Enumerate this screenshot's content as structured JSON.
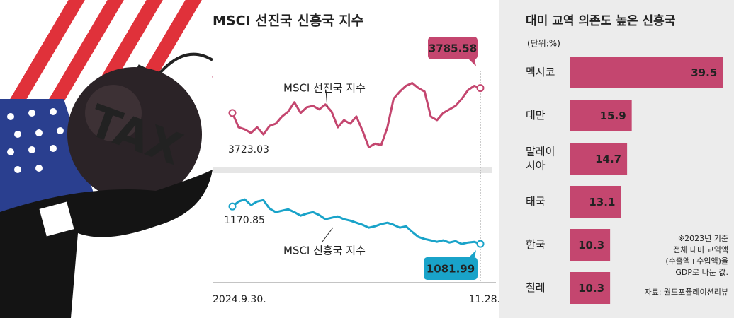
{
  "illustration_text": "TAX",
  "chart_data": [
    {
      "type": "line",
      "title": "MSCI 선진국 신흥국 지수",
      "categories": [
        "2024.9.30.",
        null,
        null,
        null,
        null,
        null,
        null,
        null,
        null,
        null,
        null,
        null,
        null,
        null,
        null,
        null,
        null,
        null,
        null,
        null,
        null,
        null,
        null,
        null,
        null,
        null,
        null,
        null,
        null,
        null,
        null,
        null,
        null,
        null,
        null,
        null,
        null,
        null,
        null,
        null,
        "11.28."
      ],
      "series": [
        {
          "name": "MSCI 선진국 지수",
          "color": "#c4466f",
          "ylim": [
            3590,
            3900
          ],
          "values": [
            3723.03,
            3687.2,
            3681.9,
            3672.9,
            3687.2,
            3669.3,
            3690.8,
            3696.2,
            3714.1,
            3726.6,
            3749.9,
            3723.0,
            3737.4,
            3740.9,
            3732.0,
            3744.5,
            3726.6,
            3687.2,
            3705.1,
            3696.2,
            3714.1,
            3678.3,
            3637.1,
            3646.1,
            3642.5,
            3687.2,
            3758.8,
            3776.7,
            3791.0,
            3798.2,
            3785.7,
            3776.7,
            3714.1,
            3705.1,
            3723.0,
            3732.0,
            3740.9,
            3758.8,
            3780.3,
            3791.0,
            3785.58
          ]
        },
        {
          "name": "MSCI 신흥국 지수",
          "color": "#19a3c9",
          "ylim": [
            990,
            1250
          ],
          "values": [
            1170.85,
            1182.6,
            1187.6,
            1174.2,
            1182.6,
            1186.0,
            1165.8,
            1157.4,
            1160.8,
            1164.1,
            1157.4,
            1149.0,
            1154.1,
            1157.4,
            1150.7,
            1140.7,
            1144.0,
            1147.4,
            1140.7,
            1137.3,
            1132.3,
            1127.3,
            1120.5,
            1123.9,
            1129.0,
            1132.3,
            1127.3,
            1120.5,
            1123.9,
            1110.5,
            1098.7,
            1093.7,
            1090.4,
            1087.0,
            1090.4,
            1085.3,
            1088.6,
            1082.0,
            1085.3,
            1087.0,
            1081.99
          ]
        }
      ]
    },
    {
      "type": "bar",
      "orientation": "horizontal",
      "title": "대미 교역 의존도 높은 신흥국",
      "subtitle": "(단위:%)",
      "categories": [
        "멕시코",
        "대만",
        "말레이\n시아",
        "태국",
        "한국",
        "칠레"
      ],
      "values": [
        39.5,
        15.9,
        14.7,
        13.1,
        10.3,
        10.3
      ],
      "color": "#c4466f",
      "xlim": [
        0,
        40
      ],
      "note": "※2023년 기준\n전체 대미 교역액\n(수출액+수입액)을\nGDP로 나눈 값.",
      "source": "자료: 월드포퓰레이션리뷰"
    }
  ]
}
